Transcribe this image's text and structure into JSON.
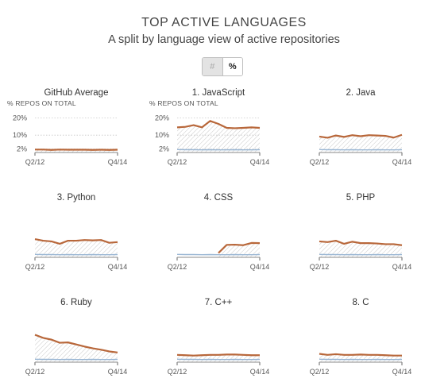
{
  "header": {
    "title": "TOP ACTIVE LANGUAGES",
    "subtitle": "A split by language view of active repositories"
  },
  "toggle": {
    "count_label": "#",
    "percent_label": "%",
    "selected": "%"
  },
  "colors": {
    "language_line": "#b8673a",
    "average_line": "#9bb7d4",
    "hatch": "#cfcfcf",
    "gridline": "#c8c8c8"
  },
  "chart_data": [
    {
      "type": "line",
      "title": "GitHub Average",
      "ylabel": "% REPOS ON TOTAL",
      "yticks": [
        "20%",
        "10%",
        "2%"
      ],
      "ytick_values": [
        20,
        10,
        2
      ],
      "ylim": [
        0,
        22
      ],
      "x_start_label": "Q2/12",
      "x_end_label": "Q4/14",
      "show_axis": true,
      "series": [
        {
          "values": [
            1.7,
            1.7,
            1.5,
            1.7,
            1.6,
            1.6,
            1.6,
            1.5,
            1.6,
            1.5,
            1.6
          ]
        }
      ]
    },
    {
      "type": "line",
      "title": "1. JavaScript",
      "ylabel": "% REPOS ON TOTAL",
      "yticks": [
        "20%",
        "10%",
        "2%"
      ],
      "ytick_values": [
        20,
        10,
        2
      ],
      "ylim": [
        0,
        22
      ],
      "x_start_label": "Q2/12",
      "x_end_label": "Q4/14",
      "show_axis": true,
      "series": [
        {
          "values": [
            14.5,
            14.8,
            15.8,
            14.5,
            18.2,
            16.5,
            14.2,
            14.0,
            14.2,
            14.5,
            14.2
          ]
        },
        {
          "values": [
            1.7,
            1.6,
            1.6,
            1.5,
            1.6,
            1.5,
            1.5,
            1.6,
            1.5,
            1.5,
            1.6
          ]
        }
      ]
    },
    {
      "type": "line",
      "title": "2. Java",
      "x_start_label": "Q2/12",
      "x_end_label": "Q4/14",
      "show_axis": false,
      "ylim": [
        0,
        22
      ],
      "series": [
        {
          "values": [
            9.2,
            8.5,
            9.8,
            9.0,
            10.0,
            9.4,
            10.0,
            9.8,
            9.6,
            8.6,
            10.2
          ]
        },
        {
          "values": [
            1.7,
            1.6,
            1.6,
            1.5,
            1.6,
            1.5,
            1.5,
            1.6,
            1.5,
            1.5,
            1.6
          ]
        }
      ]
    },
    {
      "type": "line",
      "title": "3. Python",
      "x_start_label": "Q2/12",
      "x_end_label": "Q4/14",
      "show_axis": false,
      "ylim": [
        0,
        22
      ],
      "series": [
        {
          "values": [
            10.5,
            9.6,
            9.2,
            7.8,
            9.6,
            9.6,
            10.0,
            9.8,
            10.0,
            8.4,
            8.8
          ]
        },
        {
          "values": [
            1.7,
            1.6,
            1.6,
            1.5,
            1.6,
            1.5,
            1.5,
            1.6,
            1.5,
            1.5,
            1.6
          ]
        }
      ]
    },
    {
      "type": "line",
      "title": "4. CSS",
      "x_start_label": "Q2/12",
      "x_end_label": "Q4/14",
      "show_axis": false,
      "ylim": [
        0,
        22
      ],
      "series": [
        {
          "values": [
            null,
            null,
            null,
            null,
            null,
            2.5,
            7.2,
            7.3,
            7.0,
            8.3,
            8.2
          ]
        },
        {
          "values": [
            1.7,
            1.6,
            1.6,
            1.5,
            1.6,
            1.5,
            1.5,
            1.6,
            1.5,
            1.5,
            1.6
          ]
        }
      ]
    },
    {
      "type": "line",
      "title": "5. PHP",
      "x_start_label": "Q2/12",
      "x_end_label": "Q4/14",
      "show_axis": false,
      "ylim": [
        0,
        22
      ],
      "series": [
        {
          "values": [
            9.2,
            8.8,
            9.6,
            7.8,
            9.0,
            8.2,
            8.2,
            8.0,
            7.6,
            7.6,
            7.0
          ]
        },
        {
          "values": [
            1.7,
            1.6,
            1.6,
            1.5,
            1.6,
            1.5,
            1.5,
            1.6,
            1.5,
            1.5,
            1.6
          ]
        }
      ]
    },
    {
      "type": "line",
      "title": "6. Ruby",
      "x_start_label": "Q2/12",
      "x_end_label": "Q4/14",
      "show_axis": false,
      "ylim": [
        0,
        22
      ],
      "series": [
        {
          "values": [
            15.8,
            14.0,
            13.0,
            11.2,
            11.4,
            10.2,
            9.0,
            8.0,
            7.2,
            6.2,
            5.6
          ]
        },
        {
          "values": [
            1.7,
            1.6,
            1.6,
            1.5,
            1.6,
            1.5,
            1.5,
            1.6,
            1.5,
            1.5,
            1.6
          ]
        }
      ]
    },
    {
      "type": "line",
      "title": "7. C++",
      "x_start_label": "Q2/12",
      "x_end_label": "Q4/14",
      "show_axis": false,
      "ylim": [
        0,
        22
      ],
      "series": [
        {
          "values": [
            4.2,
            4.0,
            3.8,
            4.0,
            4.2,
            4.2,
            4.4,
            4.4,
            4.2,
            4.0,
            4.0
          ]
        },
        {
          "values": [
            1.7,
            1.6,
            1.6,
            1.5,
            1.6,
            1.5,
            1.5,
            1.6,
            1.5,
            1.5,
            1.6
          ]
        }
      ]
    },
    {
      "type": "line",
      "title": "8. C",
      "x_start_label": "Q2/12",
      "x_end_label": "Q4/14",
      "show_axis": false,
      "ylim": [
        0,
        22
      ],
      "series": [
        {
          "values": [
            4.8,
            4.2,
            4.6,
            4.2,
            4.2,
            4.4,
            4.2,
            4.2,
            4.0,
            3.8,
            3.8
          ]
        },
        {
          "values": [
            1.7,
            1.6,
            1.6,
            1.5,
            1.6,
            1.5,
            1.5,
            1.6,
            1.5,
            1.5,
            1.6
          ]
        }
      ]
    }
  ]
}
